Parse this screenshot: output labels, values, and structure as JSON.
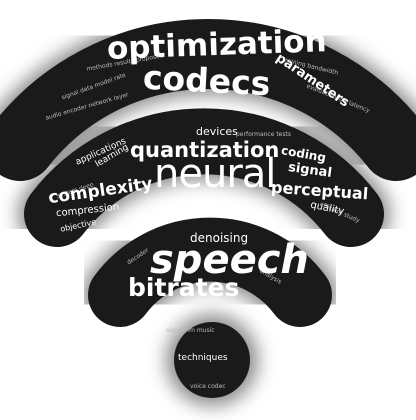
{
  "colors": {
    "ink": "#1a1a1a",
    "text": "#ffffff",
    "faint_text": "#bdbdbd",
    "background": "#ffffff"
  },
  "words": {
    "optimization": "optimization",
    "codecs": "codecs",
    "parameters": "parameters",
    "devices": "devices",
    "quantization": "quantization",
    "neural": "neural",
    "coding": "coding",
    "signal": "signal",
    "perceptual": "perceptual",
    "quality": "quality",
    "complexity": "complexity",
    "compression": "compression",
    "objective": "objective",
    "applications": "applications",
    "learning": "learning",
    "denoising": "denoising",
    "speech": "speech",
    "bitrates": "bitrates",
    "techniques": "techniques"
  }
}
